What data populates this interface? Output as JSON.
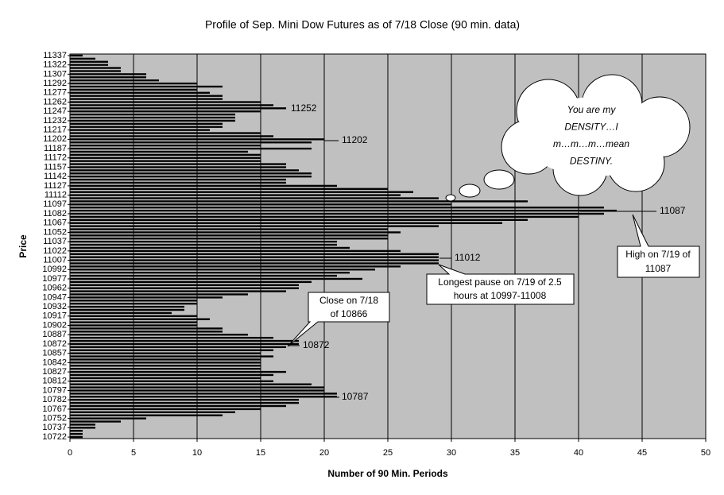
{
  "chart_data": {
    "type": "hbar",
    "title": "Profile of Sep. Mini Dow Futures as of 7/18 Close (90 min. data)",
    "xlabel": "Number of 90 Min. Periods",
    "ylabel": "Price",
    "categories": [
      "11337",
      null,
      null,
      "11322",
      null,
      null,
      "11307",
      null,
      null,
      "11292",
      null,
      null,
      "11277",
      null,
      null,
      "11262",
      null,
      null,
      "11247",
      null,
      null,
      "11232",
      null,
      null,
      "11217",
      null,
      null,
      "11202",
      null,
      null,
      "11187",
      null,
      null,
      "11172",
      null,
      null,
      "11157",
      null,
      null,
      "11142",
      null,
      null,
      "11127",
      null,
      null,
      "11112",
      null,
      null,
      "11097",
      null,
      null,
      "11082",
      null,
      null,
      "11067",
      null,
      null,
      "11052",
      null,
      null,
      "11037",
      null,
      null,
      "11022",
      null,
      null,
      "11007",
      null,
      null,
      "10992",
      null,
      null,
      "10977",
      null,
      null,
      "10962",
      null,
      null,
      "10947",
      null,
      null,
      "10932",
      null,
      null,
      "10917",
      null,
      null,
      "10902",
      null,
      null,
      "10887",
      null,
      null,
      "10872",
      null,
      null,
      "10857",
      null,
      null,
      "10842",
      null,
      null,
      "10827",
      null,
      null,
      "10812",
      null,
      null,
      "10797",
      null,
      null,
      "10782",
      null,
      null,
      "10767",
      null,
      null,
      "10752",
      null,
      null,
      "10737",
      null,
      null,
      "10722"
    ],
    "values": [
      1,
      2,
      3,
      3,
      4,
      4,
      6,
      6,
      7,
      10,
      12,
      10,
      11,
      12,
      12,
      15,
      16,
      17,
      15,
      13,
      13,
      13,
      12,
      12,
      11,
      15,
      16,
      20,
      19,
      15,
      19,
      14,
      15,
      15,
      15,
      17,
      17,
      18,
      19,
      19,
      17,
      17,
      21,
      25,
      27,
      26,
      29,
      36,
      30,
      42,
      43,
      42,
      40,
      36,
      34,
      29,
      25,
      26,
      25,
      25,
      21,
      21,
      22,
      26,
      29,
      29,
      29,
      29,
      26,
      24,
      22,
      21,
      23,
      19,
      18,
      18,
      17,
      14,
      12,
      10,
      10,
      9,
      9,
      8,
      10,
      11,
      10,
      10,
      12,
      12,
      14,
      16,
      18,
      18,
      17,
      16,
      15,
      16,
      15,
      15,
      15,
      15,
      17,
      16,
      15,
      16,
      19,
      20,
      20,
      21,
      21,
      18,
      18,
      17,
      15,
      13,
      12,
      6,
      4,
      2,
      2,
      1,
      1,
      1
    ],
    "color": "#000000",
    "background": "#c0c0c0",
    "xlim": [
      0,
      50
    ],
    "xticks": [
      0,
      5,
      10,
      15,
      20,
      25,
      30,
      35,
      40,
      45,
      50
    ],
    "grid": true,
    "annotations": [
      {
        "lines": [
          "11252"
        ]
      },
      {
        "lines": [
          "11202"
        ]
      },
      {
        "lines": [
          "11087"
        ]
      },
      {
        "lines": [
          "11012"
        ]
      },
      {
        "lines": [
          "10872"
        ]
      },
      {
        "lines": [
          "10787"
        ]
      },
      {
        "lines": [
          "Close on 7/18",
          "of 10866"
        ]
      },
      {
        "lines": [
          "Longest pause on 7/19 of 2.5",
          "hours at 10997-11008"
        ]
      },
      {
        "lines": [
          "High on 7/19 of",
          "11087"
        ]
      },
      {
        "lines": [
          "You are my",
          "DENSITY…I",
          "m…m…m…mean",
          "DESTINY."
        ]
      }
    ]
  }
}
